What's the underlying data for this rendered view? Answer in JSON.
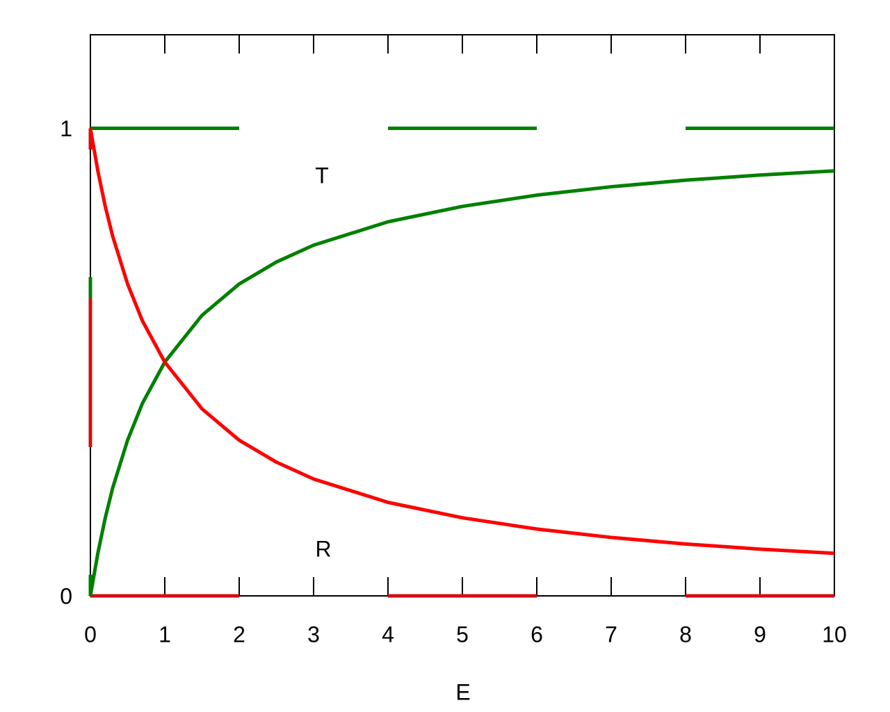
{
  "chart_data": {
    "type": "line",
    "x_label": "E",
    "annotations": [
      "T",
      "R"
    ],
    "xlim": [
      0,
      10
    ],
    "ylim": [
      0,
      1.2
    ],
    "xticks": [
      0,
      1,
      2,
      3,
      4,
      5,
      6,
      7,
      8,
      9,
      10
    ],
    "yticks": [
      0,
      1
    ],
    "series": [
      {
        "color": "#008000",
        "dashed": true,
        "x": [
          0,
          0,
          10
        ],
        "values": [
          0,
          1,
          1
        ]
      },
      {
        "color": "#d01010",
        "dashed": true,
        "x": [
          0,
          0,
          10
        ],
        "values": [
          1,
          0,
          0
        ]
      },
      {
        "color": "#008000",
        "dashed": false,
        "x": [
          0,
          0.1,
          0.2,
          0.3,
          0.5,
          0.7,
          1,
          1.5,
          2,
          2.5,
          3,
          4,
          5,
          6,
          7,
          8,
          9,
          10
        ],
        "values": [
          0,
          0.091,
          0.167,
          0.231,
          0.333,
          0.412,
          0.5,
          0.6,
          0.667,
          0.714,
          0.75,
          0.8,
          0.833,
          0.857,
          0.875,
          0.889,
          0.9,
          0.909
        ]
      },
      {
        "color": "#ff0000",
        "dashed": false,
        "x": [
          0,
          0.1,
          0.2,
          0.3,
          0.5,
          0.7,
          1,
          1.5,
          2,
          2.5,
          3,
          4,
          5,
          6,
          7,
          8,
          9,
          10
        ],
        "values": [
          1,
          0.909,
          0.833,
          0.769,
          0.667,
          0.588,
          0.5,
          0.4,
          0.333,
          0.286,
          0.25,
          0.2,
          0.167,
          0.143,
          0.125,
          0.111,
          0.1,
          0.091
        ]
      }
    ]
  }
}
